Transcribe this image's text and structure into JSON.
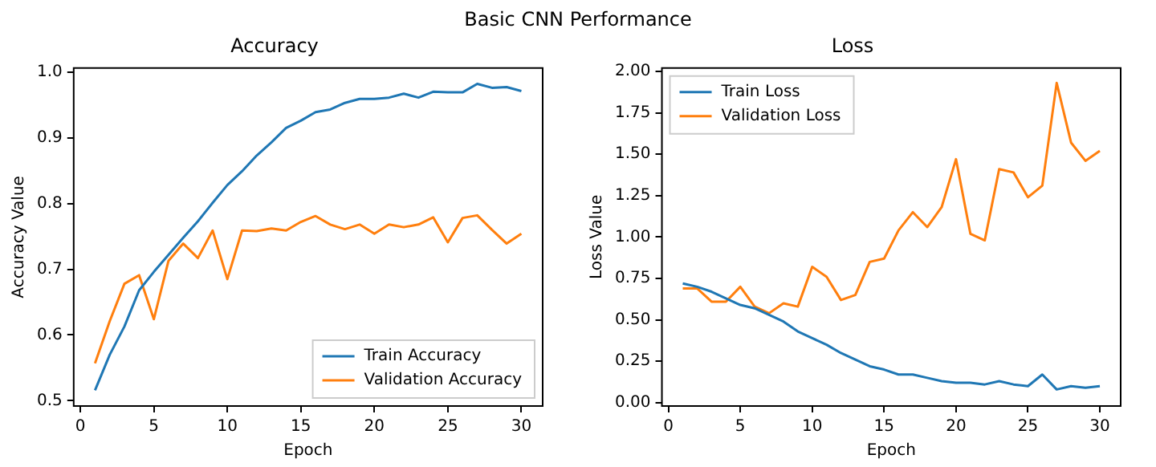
{
  "chart_data": [
    {
      "type": "line",
      "title": "Accuracy",
      "xlabel": "Epoch",
      "ylabel": "Accuracy Value",
      "annotations": [
        "Basic CNN Performance"
      ],
      "x": [
        1,
        2,
        3,
        4,
        5,
        6,
        7,
        8,
        9,
        10,
        11,
        12,
        13,
        14,
        15,
        16,
        17,
        18,
        19,
        20,
        21,
        22,
        23,
        24,
        25,
        26,
        27,
        28,
        29,
        30
      ],
      "series": [
        {
          "name": "Train Accuracy",
          "color": "#1f77b4",
          "values": [
            0.516,
            0.57,
            0.613,
            0.668,
            0.696,
            0.722,
            0.748,
            0.773,
            0.801,
            0.828,
            0.849,
            0.873,
            0.893,
            0.915,
            0.926,
            0.939,
            0.943,
            0.953,
            0.959,
            0.959,
            0.961,
            0.967,
            0.961,
            0.97,
            0.969,
            0.969,
            0.982,
            0.976,
            0.977,
            0.971
          ]
        },
        {
          "name": "Validation Accuracy",
          "color": "#ff7f0e",
          "values": [
            0.557,
            0.621,
            0.678,
            0.691,
            0.624,
            0.713,
            0.739,
            0.717,
            0.759,
            0.685,
            0.759,
            0.758,
            0.762,
            0.759,
            0.772,
            0.781,
            0.768,
            0.761,
            0.768,
            0.754,
            0.768,
            0.764,
            0.768,
            0.779,
            0.741,
            0.778,
            0.782,
            0.76,
            0.739,
            0.754
          ]
        }
      ],
      "xlim": [
        -0.45,
        31.45
      ],
      "xticks": [
        0,
        5,
        10,
        15,
        20,
        25,
        30
      ],
      "ylim": [
        0.492,
        1.006
      ],
      "yticks": [
        {
          "value": 0.5,
          "label": "0.5"
        },
        {
          "value": 0.6,
          "label": "0.6"
        },
        {
          "value": 0.7,
          "label": "0.7"
        },
        {
          "value": 0.8,
          "label": "0.8"
        },
        {
          "value": 0.9,
          "label": "0.9"
        },
        {
          "value": 1.0,
          "label": "1.0"
        }
      ],
      "grid": false,
      "legend": "bottom right",
      "marker": "none",
      "line_style": "solid"
    },
    {
      "type": "line",
      "title": "Loss",
      "xlabel": "Epoch",
      "ylabel": "Loss Value",
      "x": [
        1,
        2,
        3,
        4,
        5,
        6,
        7,
        8,
        9,
        10,
        11,
        12,
        13,
        14,
        15,
        16,
        17,
        18,
        19,
        20,
        21,
        22,
        23,
        24,
        25,
        26,
        27,
        28,
        29,
        30
      ],
      "series": [
        {
          "name": "Train Loss",
          "color": "#1f77b4",
          "values": [
            0.72,
            0.7,
            0.67,
            0.63,
            0.59,
            0.57,
            0.53,
            0.49,
            0.43,
            0.39,
            0.35,
            0.3,
            0.26,
            0.22,
            0.2,
            0.17,
            0.17,
            0.15,
            0.13,
            0.12,
            0.12,
            0.11,
            0.13,
            0.11,
            0.1,
            0.17,
            0.08,
            0.1,
            0.09,
            0.1
          ]
        },
        {
          "name": "Validation Loss",
          "color": "#ff7f0e",
          "values": [
            0.69,
            0.69,
            0.61,
            0.61,
            0.7,
            0.58,
            0.54,
            0.6,
            0.58,
            0.82,
            0.76,
            0.62,
            0.65,
            0.85,
            0.87,
            1.04,
            1.15,
            1.06,
            1.18,
            1.47,
            1.02,
            0.98,
            1.41,
            1.39,
            1.24,
            1.31,
            1.93,
            1.57,
            1.46,
            1.52
          ]
        }
      ],
      "xlim": [
        -0.45,
        31.45
      ],
      "xticks": [
        0,
        5,
        10,
        15,
        20,
        25,
        30
      ],
      "ylim": [
        -0.02,
        2.02
      ],
      "yticks": [
        {
          "value": 0,
          "label": "0.00"
        },
        {
          "value": 0.25,
          "label": "0.25"
        },
        {
          "value": 0.5,
          "label": "0.50"
        },
        {
          "value": 0.75,
          "label": "0.75"
        },
        {
          "value": 1.0,
          "label": "1.00"
        },
        {
          "value": 1.25,
          "label": "1.25"
        },
        {
          "value": 1.5,
          "label": "1.50"
        },
        {
          "value": 1.75,
          "label": "1.75"
        },
        {
          "value": 2.0,
          "label": "2.00"
        }
      ],
      "grid": false,
      "legend": "top left",
      "marker": "none",
      "line_style": "solid"
    }
  ]
}
